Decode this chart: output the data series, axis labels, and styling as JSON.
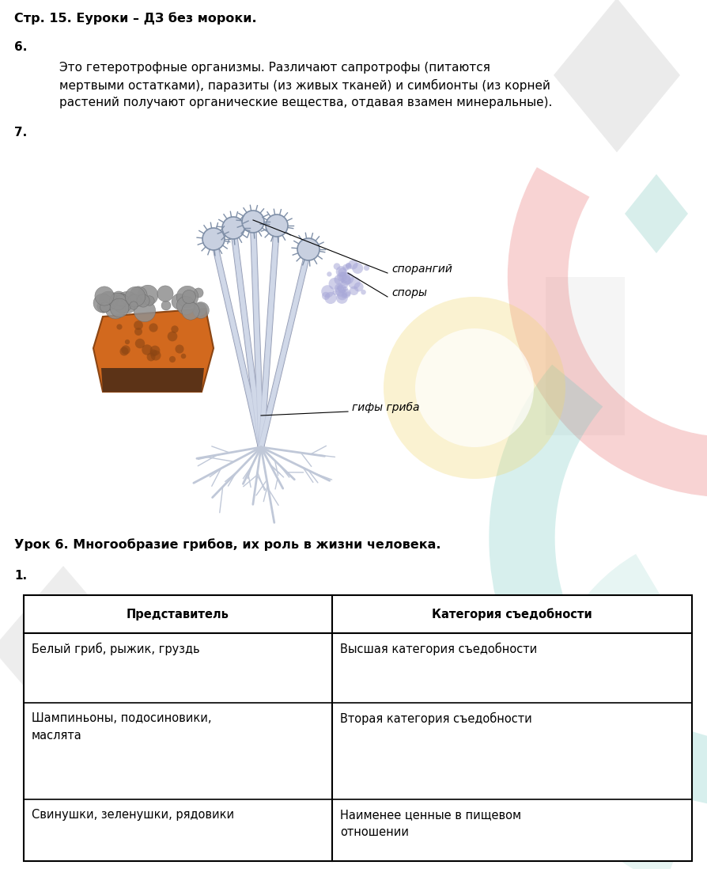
{
  "title_line": "Стр. 15. Еуроки – ДЗ без мороки.",
  "q6_label": "6.",
  "q6_text_line1": "Это гетеротрофные организмы. Различают сапротрофы (питаются",
  "q6_text_line2": "мертвыми остатками), паразиты (из живых тканей) и симбионты (из корней",
  "q6_text_line3": "растений получают органические вещества, отдавая взамен минеральные).",
  "q7_label": "7.",
  "label_sporangiy": "спорангий",
  "label_spory": "споры",
  "label_giphy": "гифы гриба",
  "lesson_title": "Урок 6. Многообразие грибов, их роль в жизни человека.",
  "q1_label": "1.",
  "table_header_col1": "Представитель",
  "table_header_col2": "Категория съедобности",
  "table_row1_col1": "Белый гриб, рыжик, груздь",
  "table_row1_col2": "Высшая категория съедобности",
  "table_row2_col1_a": "Шампиньоны, подосиновики,",
  "table_row2_col1_b": "маслята",
  "table_row2_col2": "Вторая категория съедобности",
  "table_row3_col1": "Свинушки, зеленушки, рядовики",
  "table_row3_col2_a": "Наименее ценные в пищевом",
  "table_row3_col2_b": "отношении",
  "bg_color": "#ffffff",
  "text_color": "#000000",
  "title_fontsize": 11.5,
  "body_fontsize": 11,
  "table_fontsize": 10.5
}
